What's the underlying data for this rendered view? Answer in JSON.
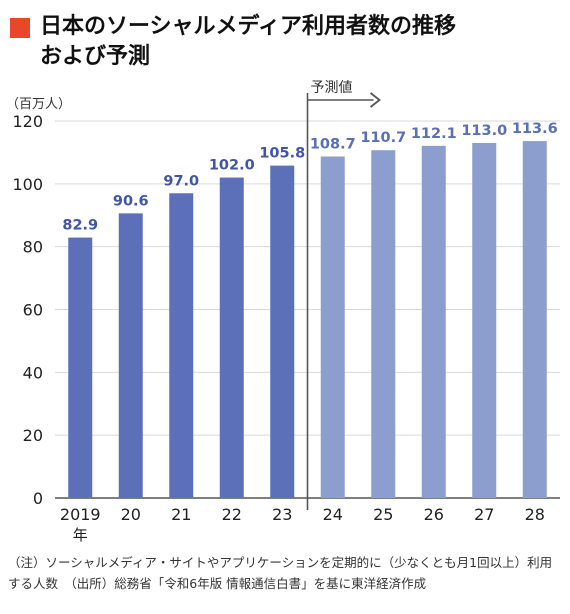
{
  "title": {
    "line1": "日本のソーシャルメディア利用者数の推移",
    "line2": "および予測"
  },
  "chart_data": {
    "type": "bar",
    "unit_label": "（百万人）",
    "categories": [
      "2019",
      "20",
      "21",
      "22",
      "23",
      "24",
      "25",
      "26",
      "27",
      "28"
    ],
    "first_category_suffix": "年",
    "values": [
      82.9,
      90.6,
      97.0,
      102.0,
      105.8,
      108.7,
      110.7,
      112.1,
      113.0,
      113.6
    ],
    "value_labels": [
      "82.9",
      "90.6",
      "97.0",
      "102.0",
      "105.8",
      "108.7",
      "110.7",
      "112.1",
      "113.0",
      "113.6"
    ],
    "forecast_start_index": 5,
    "forecast_label": "予測値",
    "ylim": [
      0,
      120
    ],
    "yticks": [
      0,
      20,
      40,
      60,
      80,
      100,
      120
    ],
    "grid": true,
    "colors": {
      "actual": "#5b70b8",
      "forecast": "#8c9ecd",
      "label_actual": "#3f56a6",
      "label_forecast": "#5a6fb5",
      "grid": "#d9d9d9",
      "divider": "#555555"
    }
  },
  "footnote": {
    "text": "（注）ソーシャルメディア・サイトやアプリケーションを定期的に（少なくとも月1回以上）利用する人数　（出所）総務省「令和6年版 情報通信白書」を基に東洋経済作成"
  }
}
